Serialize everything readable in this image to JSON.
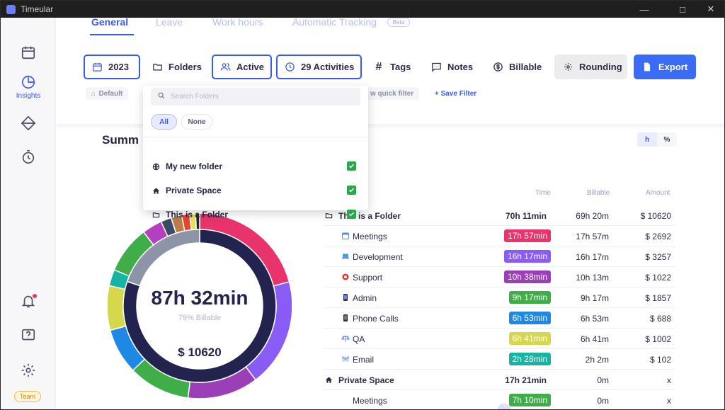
{
  "window": {
    "title": "Timeular"
  },
  "sidebar": {
    "items": [
      {
        "name": "calendar-icon",
        "label": ""
      },
      {
        "name": "insights-icon",
        "label": "Insights"
      },
      {
        "name": "tracker-icon",
        "label": ""
      },
      {
        "name": "timer-icon",
        "label": ""
      },
      {
        "name": "bell-icon",
        "label": ""
      },
      {
        "name": "help-icon",
        "label": ""
      },
      {
        "name": "gear-icon",
        "label": ""
      }
    ],
    "team_label": "Team"
  },
  "tabs": [
    {
      "label": "General"
    },
    {
      "label": "Leave"
    },
    {
      "label": "Work hours"
    },
    {
      "label": "Automatic Tracking"
    }
  ],
  "beta_label": "Beta",
  "toolbar": {
    "year": "2023",
    "folders": "Folders",
    "active": "Active",
    "activities": "29 Activities",
    "tags": "Tags",
    "notes": "Notes",
    "billable": "Billable",
    "rounding": "Rounding",
    "export": "Export"
  },
  "filters": {
    "default": "Default",
    "quick_filter_fragment": "w quick filter",
    "save_filter": "+ Save Filter"
  },
  "folders_dropdown": {
    "search_placeholder": "Search Folders",
    "all": "All",
    "none": "None",
    "items": [
      {
        "label": "My new folder",
        "icon": "globe-icon",
        "checked": true
      },
      {
        "label": "Private Space",
        "icon": "home-icon",
        "checked": true
      },
      {
        "label": "This is a Folder",
        "icon": "folder-icon",
        "checked": true
      }
    ]
  },
  "summary": {
    "title_fragment": "Summ",
    "unit_toggle": [
      "h",
      "%"
    ],
    "total_time": "87h 32min",
    "billable_percent": "79% Billable",
    "amount": "$ 10620"
  },
  "table": {
    "headers": {
      "time": "Time",
      "billable": "Billable",
      "amount": "Amount"
    },
    "rows": [
      {
        "type": "group",
        "name": "This is a Folder",
        "icon": "folder-icon",
        "time": "70h 11min",
        "billable": "69h 20m",
        "amount": "$ 10620"
      },
      {
        "type": "sub",
        "name": "Meetings",
        "icon": "calendar-emoji-icon",
        "time": "17h 57min",
        "color": "#e8336c",
        "billable": "17h 57m",
        "amount": "$ 2692"
      },
      {
        "type": "sub",
        "name": "Development",
        "icon": "laptop-emoji-icon",
        "time": "16h 17min",
        "color": "#8a5cf6",
        "billable": "16h 17m",
        "amount": "$ 3257"
      },
      {
        "type": "sub",
        "name": "Support",
        "icon": "lifebuoy-emoji-icon",
        "time": "10h 38min",
        "color": "#9b3fb8",
        "billable": "10h 13m",
        "amount": "$ 1022"
      },
      {
        "type": "sub",
        "name": "Admin",
        "icon": "phone-emoji-icon",
        "time": "9h 17min",
        "color": "#3fae49",
        "billable": "9h 17m",
        "amount": "$ 1857"
      },
      {
        "type": "sub",
        "name": "Phone Calls",
        "icon": "mobile-emoji-icon",
        "time": "6h 53min",
        "color": "#1e88e5",
        "billable": "6h 53m",
        "amount": "$ 688"
      },
      {
        "type": "sub",
        "name": "QA",
        "icon": "scales-emoji-icon",
        "time": "6h 41min",
        "color": "#d4d84a",
        "billable": "6h 41m",
        "amount": "$ 1002"
      },
      {
        "type": "sub",
        "name": "Email",
        "icon": "mail-emoji-icon",
        "time": "2h 28min",
        "color": "#17b3a3",
        "billable": "2h 2m",
        "amount": "$ 102"
      },
      {
        "type": "group",
        "name": "Private Space",
        "icon": "home-icon",
        "time": "17h 21min",
        "billable": "0m",
        "amount": "x"
      },
      {
        "type": "sub",
        "name": "Meetings",
        "icon": "",
        "time": "7h 10min",
        "color": "#3fae49",
        "billable": "0m",
        "amount": "x"
      }
    ]
  },
  "donut": {
    "outer": [
      {
        "label": "Meetings",
        "value": 17.95,
        "color": "#e8336c"
      },
      {
        "label": "Development",
        "value": 16.28,
        "color": "#8a5cf6"
      },
      {
        "label": "Support",
        "value": 10.63,
        "color": "#9b3fb8"
      },
      {
        "label": "Admin",
        "value": 9.28,
        "color": "#3fae49"
      },
      {
        "label": "Phone Calls",
        "value": 6.88,
        "color": "#1e88e5"
      },
      {
        "label": "QA",
        "value": 6.68,
        "color": "#d4d84a"
      },
      {
        "label": "Email",
        "value": 2.47,
        "color": "#17b3a3"
      },
      {
        "label": "Meetings",
        "value": 7.17,
        "color": "#3fae49"
      },
      {
        "label": "other-1",
        "value": 3.0,
        "color": "#b43fc0"
      },
      {
        "label": "other-2",
        "value": 1.6,
        "color": "#3d4a66"
      },
      {
        "label": "other-3",
        "value": 1.6,
        "color": "#b87d4b"
      },
      {
        "label": "other-4",
        "value": 1.2,
        "color": "#e8452c"
      },
      {
        "label": "other-5",
        "value": 0.9,
        "color": "#e8e055"
      },
      {
        "label": "other-6",
        "value": 0.6,
        "color": "#222222"
      }
    ],
    "inner": [
      {
        "label": "This is a Folder",
        "value": 70.18,
        "color": "#23234f"
      },
      {
        "label": "Private Space",
        "value": 17.35,
        "color": "#8e94a7"
      }
    ]
  }
}
